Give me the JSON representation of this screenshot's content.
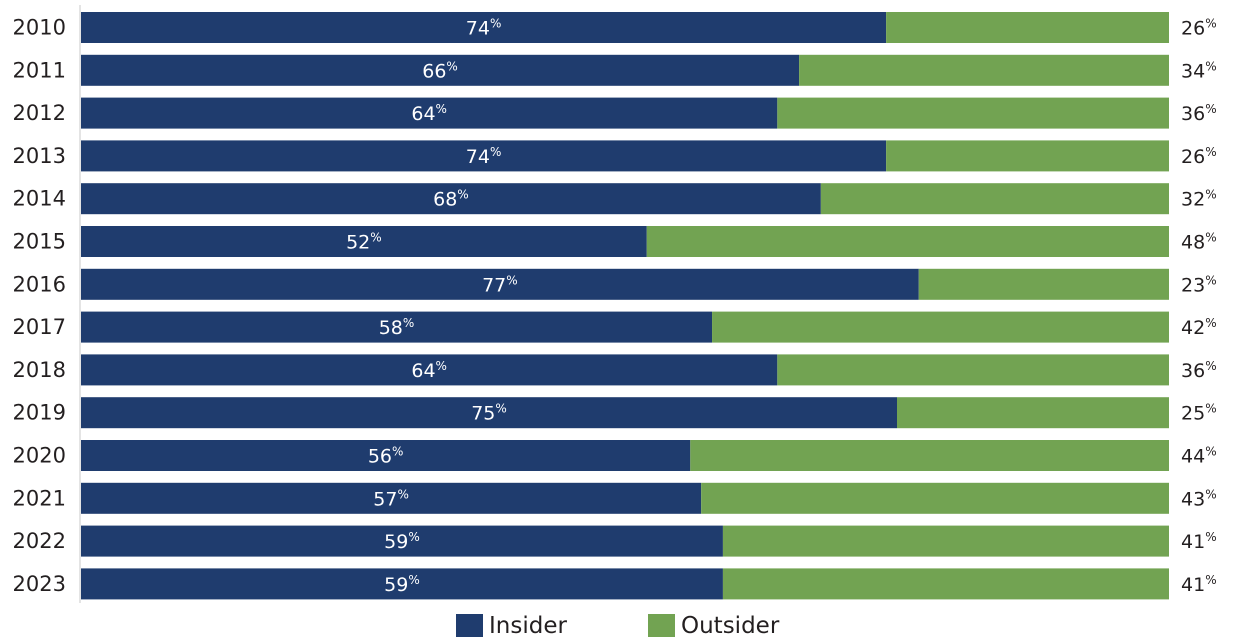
{
  "chart_data": {
    "type": "bar",
    "orientation": "horizontal",
    "stacked": true,
    "percent_symbol": "%",
    "categories": [
      "2010",
      "2011",
      "2012",
      "2013",
      "2014",
      "2015",
      "2016",
      "2017",
      "2018",
      "2019",
      "2020",
      "2021",
      "2022",
      "2023"
    ],
    "series": [
      {
        "name": "Insider",
        "color": "#1f3c6e",
        "values": [
          74,
          66,
          64,
          74,
          68,
          52,
          77,
          58,
          64,
          75,
          56,
          57,
          59,
          59
        ]
      },
      {
        "name": "Outsider",
        "color": "#72a352",
        "values": [
          26,
          34,
          36,
          26,
          32,
          48,
          23,
          42,
          36,
          25,
          44,
          43,
          41,
          41
        ]
      }
    ],
    "xlim": [
      0,
      100
    ],
    "grid": false,
    "legend_position": "bottom-center"
  }
}
